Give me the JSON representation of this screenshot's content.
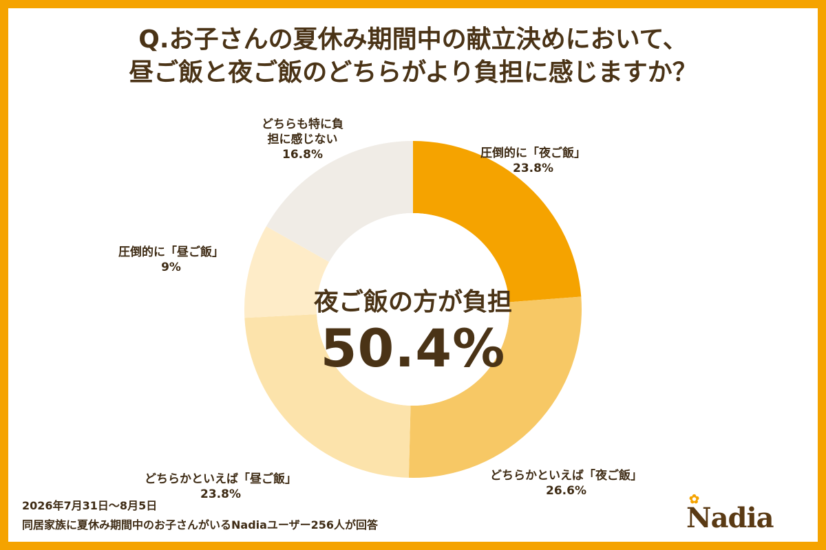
{
  "title": {
    "line1": "Q.お子さんの夏休み期間中の献立決めにおいて、",
    "line2": "昼ご飯と夜ご飯のどちらがより負担に感じますか？"
  },
  "center": {
    "caption": "夜ご飯の方が負担",
    "value": "50.4%"
  },
  "footnotes": {
    "period": "2026年7月31日～8月5日",
    "respondents": "同居家族に夏休み期間中のお子さんがいるNadiaユーザー256人が回答"
  },
  "logo": {
    "text": "Nadia",
    "mark": "✿"
  },
  "colors": {
    "frame": "#F5A300",
    "text": "#4A3316"
  },
  "chart_data": {
    "type": "pie",
    "variant": "donut",
    "start_angle_deg": 0,
    "direction": "clockwise",
    "slices": [
      {
        "name_line1": "圧倒的に「夜ご飯」",
        "name_line2": "",
        "label": "23.8%",
        "value": 23.8,
        "color": "#F5A300"
      },
      {
        "name_line1": "どちらかといえば「夜ご飯」",
        "name_line2": "",
        "label": "26.6%",
        "value": 26.6,
        "color": "#F7C865"
      },
      {
        "name_line1": "どちらかといえば「昼ご飯」",
        "name_line2": "",
        "label": "23.8%",
        "value": 23.8,
        "color": "#FCE3AB"
      },
      {
        "name_line1": "圧倒的に「昼ご飯」",
        "name_line2": "",
        "label": "9%",
        "value": 9,
        "color": "#FEECC8"
      },
      {
        "name_line1": "どちらも特に負",
        "name_line2": "担に感じない",
        "label": "16.8%",
        "value": 16.8,
        "color": "#F0ECE6"
      }
    ]
  }
}
